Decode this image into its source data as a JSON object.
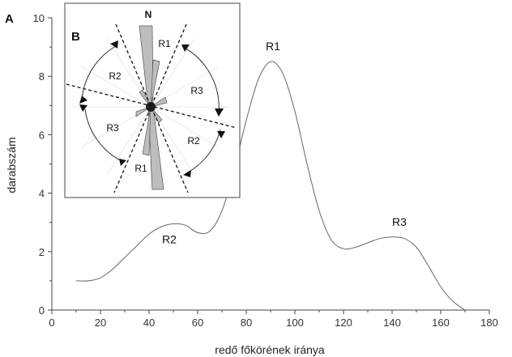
{
  "chart_data": {
    "type": "line",
    "panel_label": "A",
    "xlabel": "redő főkörének iránya",
    "ylabel": "darabszám",
    "xlim": [
      0,
      180
    ],
    "ylim": [
      0,
      10
    ],
    "xticks": [
      0,
      20,
      40,
      60,
      80,
      100,
      120,
      140,
      160,
      180
    ],
    "yticks": [
      0,
      2,
      4,
      6,
      8,
      10
    ],
    "grid": false,
    "series": [
      {
        "x": [
          10,
          15,
          20,
          25,
          30,
          35,
          40,
          45,
          50,
          55,
          60,
          65,
          70,
          75,
          80,
          85,
          90,
          95,
          100,
          105,
          110,
          115,
          120,
          125,
          130,
          135,
          140,
          145,
          150,
          155,
          160,
          165,
          170
        ],
        "y": [
          1.0,
          1.0,
          1.1,
          1.4,
          1.8,
          2.2,
          2.6,
          2.85,
          2.95,
          2.9,
          2.65,
          2.7,
          3.4,
          4.8,
          6.5,
          7.9,
          8.5,
          8.1,
          6.8,
          5.0,
          3.4,
          2.4,
          2.1,
          2.15,
          2.3,
          2.45,
          2.5,
          2.45,
          2.15,
          1.5,
          0.8,
          0.3,
          0.0
        ]
      }
    ],
    "annotations": [
      {
        "text": "R1",
        "x": 91,
        "y": 8.5
      },
      {
        "text": "R2",
        "x": 50,
        "y": 2.9
      },
      {
        "text": "R3",
        "x": 143,
        "y": 2.5
      }
    ],
    "inset": {
      "panel_label": "B",
      "north_label": "N",
      "sector_labels": [
        "R1",
        "R2",
        "R3",
        "R2",
        "R3",
        "R1"
      ]
    }
  }
}
